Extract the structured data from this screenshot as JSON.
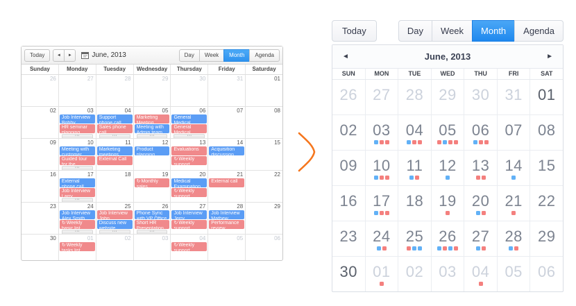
{
  "colors": {
    "event_blue": "#5b9df5",
    "event_red": "#f0898b",
    "dot_blue": "#62b1f6",
    "dot_red": "#f4807e",
    "selected_view": "#2f93ef",
    "arrow_orange": "#f5761d"
  },
  "icons": {
    "recurring": "↻",
    "more": "···",
    "prev": "◄",
    "next": "►"
  },
  "left_calendar": {
    "toolbar": {
      "today_label": "Today",
      "prev_icon": "◄",
      "next_icon": "►",
      "date_label": "June, 2013",
      "views": [
        {
          "label": "Day",
          "selected": false
        },
        {
          "label": "Week",
          "selected": false
        },
        {
          "label": "Month",
          "selected": true
        },
        {
          "label": "Agenda",
          "selected": false
        }
      ]
    },
    "day_headers": [
      "Sunday",
      "Monday",
      "Tuesday",
      "Wednesday",
      "Thursday",
      "Friday",
      "Saturday"
    ],
    "weeks": [
      {
        "days": [
          {
            "num": "26",
            "other": true
          },
          {
            "num": "27",
            "other": true
          },
          {
            "num": "28",
            "other": true
          },
          {
            "num": "29",
            "other": true
          },
          {
            "num": "30",
            "other": true
          },
          {
            "num": "31",
            "other": true
          },
          {
            "num": "01"
          }
        ]
      },
      {
        "days": [
          {
            "num": "02"
          },
          {
            "num": "03",
            "events": [
              {
                "color": "blue",
                "title": "Job Interview",
                "subtitle": "Bobby"
              },
              {
                "color": "red",
                "title": "HR seminar",
                "subtitle": "planning"
              }
            ],
            "more": true
          },
          {
            "num": "04",
            "events": [
              {
                "color": "blue",
                "title": "Support",
                "subtitle": "phone call"
              },
              {
                "color": "red",
                "title": "Sales phone",
                "subtitle": "call"
              }
            ],
            "more": true
          },
          {
            "num": "05",
            "events": [
              {
                "color": "red",
                "title": "Marketing",
                "subtitle": "Meeting"
              },
              {
                "color": "blue",
                "title": "Meeting with",
                "subtitle": "Admin team"
              }
            ],
            "more": true
          },
          {
            "num": "06",
            "events": [
              {
                "color": "blue",
                "title": "General",
                "subtitle": "Medical"
              },
              {
                "color": "red",
                "title": "General",
                "subtitle": "Medical"
              }
            ],
            "more": true
          },
          {
            "num": "07"
          },
          {
            "num": "08"
          }
        ]
      },
      {
        "days": [
          {
            "num": "09"
          },
          {
            "num": "10",
            "events": [
              {
                "color": "blue",
                "title": "Meeting with",
                "subtitle": "customer"
              },
              {
                "color": "red",
                "title": "Guided tour",
                "subtitle": "for the"
              }
            ],
            "more": true
          },
          {
            "num": "11",
            "events": [
              {
                "color": "blue",
                "title": "Marketing",
                "subtitle": "meetings"
              },
              {
                "color": "red",
                "title": "External Call",
                "subtitle": ""
              }
            ]
          },
          {
            "num": "12",
            "events": [
              {
                "color": "blue",
                "title": "Product",
                "subtitle": "planning"
              }
            ]
          },
          {
            "num": "13",
            "events": [
              {
                "color": "red",
                "title": "Evaluations",
                "subtitle": ""
              },
              {
                "color": "red",
                "title": "Weekly",
                "subtitle": "support",
                "recurring": true
              }
            ]
          },
          {
            "num": "14",
            "events": [
              {
                "color": "blue",
                "title": "Acquisition",
                "subtitle": "discussion"
              }
            ]
          },
          {
            "num": "15"
          }
        ]
      },
      {
        "days": [
          {
            "num": "16"
          },
          {
            "num": "17",
            "events": [
              {
                "color": "blue",
                "title": "External",
                "subtitle": "phone call"
              },
              {
                "color": "red",
                "title": "Job Interview",
                "subtitle": "Larry"
              }
            ],
            "more": true
          },
          {
            "num": "18"
          },
          {
            "num": "19",
            "events": [
              {
                "color": "red",
                "title": "Monthly",
                "subtitle": "sales",
                "recurring": true
              }
            ]
          },
          {
            "num": "20",
            "events": [
              {
                "color": "blue",
                "title": "Medical",
                "subtitle": "Examination"
              },
              {
                "color": "red",
                "title": "Weekly",
                "subtitle": "support",
                "recurring": true
              }
            ]
          },
          {
            "num": "21",
            "events": [
              {
                "color": "red",
                "title": "External call",
                "subtitle": ""
              }
            ]
          },
          {
            "num": "22"
          }
        ]
      },
      {
        "days": [
          {
            "num": "23"
          },
          {
            "num": "24",
            "events": [
              {
                "color": "blue",
                "title": "Job Interview",
                "subtitle": "Alex Smith"
              },
              {
                "color": "red",
                "title": "Weekly",
                "subtitle": "basic list",
                "recurring": true
              }
            ],
            "more": true
          },
          {
            "num": "25",
            "events": [
              {
                "color": "red",
                "title": "Job Interview",
                "subtitle": "John"
              },
              {
                "color": "blue",
                "title": "Discuss new",
                "subtitle": "website"
              }
            ],
            "more": true
          },
          {
            "num": "26",
            "events": [
              {
                "color": "blue",
                "title": "Phone Sync",
                "subtitle": "with VP Office"
              },
              {
                "color": "red",
                "title": "Short HR",
                "subtitle": "Presentation"
              }
            ],
            "more": true
          },
          {
            "num": "27",
            "events": [
              {
                "color": "blue",
                "title": "Job Interview",
                "subtitle": "Jerry"
              },
              {
                "color": "red",
                "title": "Weekly",
                "subtitle": "support",
                "recurring": true
              }
            ]
          },
          {
            "num": "28",
            "events": [
              {
                "color": "blue",
                "title": "Job Interview",
                "subtitle": "Mathew"
              },
              {
                "color": "red",
                "title": "Performance",
                "subtitle": "review"
              }
            ]
          },
          {
            "num": "29"
          }
        ]
      },
      {
        "days": [
          {
            "num": "30"
          },
          {
            "num": "01",
            "other": true,
            "events": [
              {
                "color": "red",
                "title": "Weekly",
                "subtitle": "tasks list",
                "recurring": true
              }
            ]
          },
          {
            "num": "02",
            "other": true
          },
          {
            "num": "03",
            "other": true
          },
          {
            "num": "04",
            "other": true,
            "events": [
              {
                "color": "red",
                "title": "Weekly",
                "subtitle": "support",
                "recurring": true
              }
            ]
          },
          {
            "num": "05",
            "other": true
          },
          {
            "num": "06",
            "other": true
          }
        ]
      }
    ]
  },
  "right_calendar": {
    "toolbar": {
      "today_label": "Today",
      "views": [
        {
          "label": "Day",
          "selected": false
        },
        {
          "label": "Week",
          "selected": false
        },
        {
          "label": "Month",
          "selected": true
        },
        {
          "label": "Agenda",
          "selected": false
        }
      ]
    },
    "nav": {
      "prev_icon": "◄",
      "title": "June, 2013",
      "next_icon": "►"
    },
    "day_headers": [
      "SUN",
      "MON",
      "TUE",
      "WED",
      "THU",
      "FRI",
      "SAT"
    ],
    "weeks": [
      {
        "days": [
          {
            "num": "26",
            "other": true
          },
          {
            "num": "27",
            "other": true
          },
          {
            "num": "28",
            "other": true
          },
          {
            "num": "29",
            "other": true
          },
          {
            "num": "30",
            "other": true
          },
          {
            "num": "31",
            "other": true
          },
          {
            "num": "01",
            "strong": true
          }
        ]
      },
      {
        "days": [
          {
            "num": "02"
          },
          {
            "num": "03",
            "dots": [
              "blue",
              "red",
              "red"
            ]
          },
          {
            "num": "04",
            "dots": [
              "blue",
              "red",
              "red"
            ]
          },
          {
            "num": "05",
            "dots": [
              "red",
              "blue",
              "red",
              "red"
            ]
          },
          {
            "num": "06",
            "dots": [
              "blue",
              "red",
              "red"
            ]
          },
          {
            "num": "07"
          },
          {
            "num": "08"
          }
        ]
      },
      {
        "days": [
          {
            "num": "09"
          },
          {
            "num": "10",
            "dots": [
              "blue",
              "red",
              "red"
            ]
          },
          {
            "num": "11",
            "dots": [
              "blue",
              "red"
            ]
          },
          {
            "num": "12",
            "dots": [
              "blue"
            ]
          },
          {
            "num": "13",
            "dots": [
              "red",
              "red"
            ]
          },
          {
            "num": "14",
            "dots": [
              "blue"
            ]
          },
          {
            "num": "15"
          }
        ]
      },
      {
        "days": [
          {
            "num": "16"
          },
          {
            "num": "17",
            "dots": [
              "blue",
              "red",
              "red"
            ]
          },
          {
            "num": "18"
          },
          {
            "num": "19",
            "dots": [
              "red"
            ]
          },
          {
            "num": "20",
            "dots": [
              "blue",
              "red"
            ]
          },
          {
            "num": "21",
            "dots": [
              "red"
            ]
          },
          {
            "num": "22"
          }
        ]
      },
      {
        "days": [
          {
            "num": "23"
          },
          {
            "num": "24",
            "dots": [
              "blue",
              "red"
            ]
          },
          {
            "num": "25",
            "dots": [
              "red",
              "blue",
              "blue"
            ]
          },
          {
            "num": "26",
            "dots": [
              "blue",
              "red",
              "blue",
              "red"
            ]
          },
          {
            "num": "27",
            "dots": [
              "blue",
              "red"
            ]
          },
          {
            "num": "28",
            "dots": [
              "blue",
              "red"
            ]
          },
          {
            "num": "29"
          }
        ]
      },
      {
        "days": [
          {
            "num": "30",
            "strong": true
          },
          {
            "num": "01",
            "other": true,
            "dots": [
              "red"
            ]
          },
          {
            "num": "02",
            "other": true
          },
          {
            "num": "03",
            "other": true
          },
          {
            "num": "04",
            "other": true,
            "dots": [
              "red"
            ]
          },
          {
            "num": "05",
            "other": true
          },
          {
            "num": "06",
            "other": true
          }
        ]
      }
    ]
  }
}
